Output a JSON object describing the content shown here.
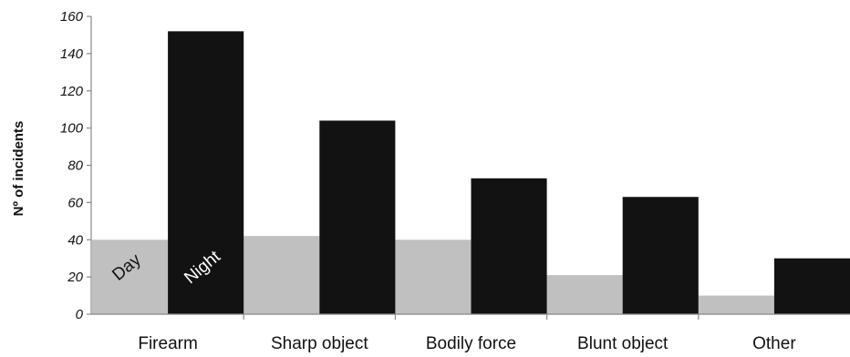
{
  "chart_data": {
    "type": "bar",
    "ylabel": "Nº of incidents",
    "xlabel": "",
    "ylim": [
      0,
      160
    ],
    "yticks": [
      0,
      20,
      40,
      60,
      80,
      100,
      120,
      140,
      160
    ],
    "grid": false,
    "categories": [
      "Firearm",
      "Sharp object",
      "Bodily force",
      "Blunt object",
      "Other"
    ],
    "series": [
      {
        "name": "Day",
        "color": "#c0c0c0",
        "label_color": "#111111",
        "values": [
          40,
          42,
          40,
          21,
          10
        ]
      },
      {
        "name": "Night",
        "color": "#121212",
        "label_color": "#ffffff",
        "values": [
          152,
          104,
          73,
          63,
          30
        ]
      }
    ]
  }
}
